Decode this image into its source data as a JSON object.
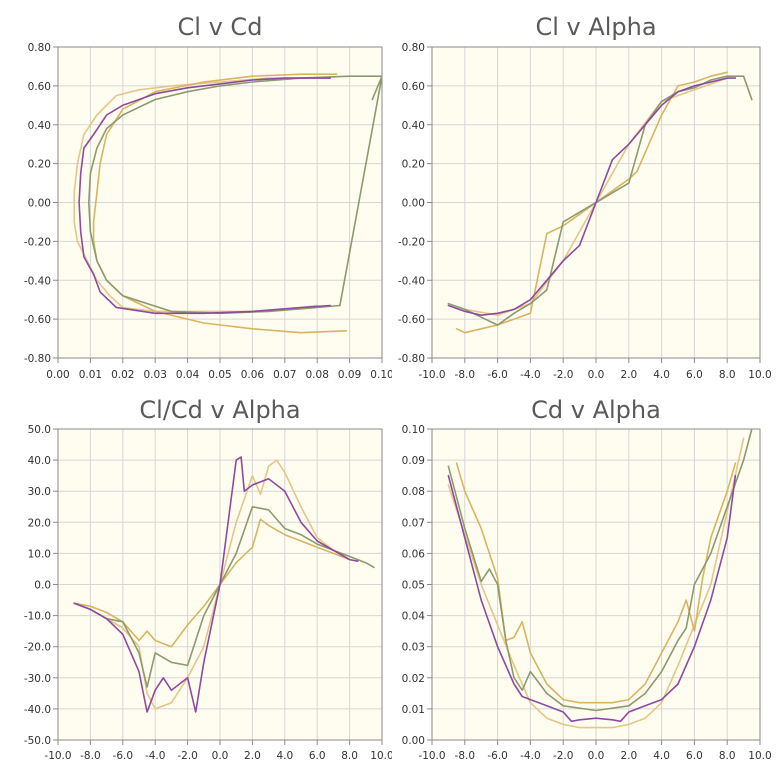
{
  "colors": {
    "series": [
      "#8e4a9e",
      "#8c9a6e",
      "#d9b45f",
      "#e3c688"
    ]
  },
  "chart_data": [
    {
      "type": "line",
      "title": "Cl v Cd",
      "xlim": [
        0.0,
        0.1
      ],
      "ylim": [
        -0.8,
        0.8
      ],
      "xticks": [
        "0.00",
        "0.01",
        "0.02",
        "0.03",
        "0.04",
        "0.05",
        "0.06",
        "0.07",
        "0.08",
        "0.09",
        "0.10"
      ],
      "yticks": [
        "-0.80",
        "-0.60",
        "-0.40",
        "-0.20",
        "0.00",
        "0.20",
        "0.40",
        "0.60",
        "0.80"
      ],
      "series": [
        {
          "x": [
            0.084,
            0.07,
            0.06,
            0.05,
            0.04,
            0.03,
            0.02,
            0.015,
            0.011,
            0.008,
            0.007,
            0.0065,
            0.007,
            0.008,
            0.011,
            0.013,
            0.018,
            0.03,
            0.045,
            0.06,
            0.075,
            0.084
          ],
          "y": [
            0.64,
            0.64,
            0.63,
            0.61,
            0.59,
            0.56,
            0.5,
            0.45,
            0.35,
            0.28,
            0.15,
            0.0,
            -0.15,
            -0.28,
            -0.37,
            -0.46,
            -0.54,
            -0.57,
            -0.57,
            -0.56,
            -0.54,
            -0.53
          ]
        },
        {
          "x": [
            0.1,
            0.09,
            0.075,
            0.06,
            0.05,
            0.04,
            0.03,
            0.02,
            0.015,
            0.012,
            0.01,
            0.0095,
            0.01,
            0.012,
            0.015,
            0.02,
            0.035,
            0.05,
            0.065,
            0.08,
            0.087,
            0.1,
            0.097
          ],
          "y": [
            0.65,
            0.65,
            0.64,
            0.62,
            0.6,
            0.57,
            0.53,
            0.45,
            0.38,
            0.28,
            0.15,
            0.0,
            -0.15,
            -0.3,
            -0.4,
            -0.48,
            -0.56,
            -0.57,
            -0.56,
            -0.54,
            -0.53,
            0.65,
            0.53
          ]
        },
        {
          "x": [
            0.086,
            0.075,
            0.06,
            0.045,
            0.03,
            0.02,
            0.015,
            0.013,
            0.012,
            0.011,
            0.011,
            0.012,
            0.015,
            0.02,
            0.03,
            0.045,
            0.06,
            0.075,
            0.089
          ],
          "y": [
            0.66,
            0.66,
            0.65,
            0.62,
            0.57,
            0.48,
            0.35,
            0.2,
            0.05,
            -0.1,
            -0.2,
            -0.3,
            -0.4,
            -0.48,
            -0.56,
            -0.62,
            -0.65,
            -0.67,
            -0.66
          ]
        },
        {
          "x": [
            0.08,
            0.065,
            0.05,
            0.035,
            0.025,
            0.018,
            0.012,
            0.008,
            0.006,
            0.005,
            0.005,
            0.006,
            0.009,
            0.012,
            0.016,
            0.02,
            0.03,
            0.045,
            0.06,
            0.075,
            0.08
          ],
          "y": [
            0.64,
            0.64,
            0.62,
            0.6,
            0.58,
            0.55,
            0.45,
            0.35,
            0.2,
            0.05,
            -0.1,
            -0.2,
            -0.3,
            -0.4,
            -0.48,
            -0.54,
            -0.56,
            -0.56,
            -0.56,
            -0.54,
            -0.53
          ]
        }
      ]
    },
    {
      "type": "line",
      "title": "Cl v Alpha",
      "xlim": [
        -10.0,
        10.0
      ],
      "ylim": [
        -0.8,
        0.8
      ],
      "xticks": [
        "-10.0",
        "-8.0",
        "-6.0",
        "-4.0",
        "-2.0",
        "0.0",
        "2.0",
        "4.0",
        "6.0",
        "8.0",
        "10.0"
      ],
      "yticks": [
        "-0.80",
        "-0.60",
        "-0.40",
        "-0.20",
        "0.00",
        "0.20",
        "0.40",
        "0.60",
        "0.80"
      ],
      "series": [
        {
          "x": [
            -9.0,
            -8.0,
            -7.0,
            -6.0,
            -5.0,
            -4.0,
            -3.0,
            -2.0,
            -1.0,
            0.0,
            1.0,
            2.0,
            3.0,
            4.0,
            5.0,
            6.0,
            7.0,
            8.0,
            8.5
          ],
          "y": [
            -0.53,
            -0.56,
            -0.58,
            -0.57,
            -0.55,
            -0.5,
            -0.4,
            -0.3,
            -0.22,
            0.0,
            0.22,
            0.3,
            0.4,
            0.5,
            0.57,
            0.6,
            0.62,
            0.64,
            0.64
          ]
        },
        {
          "x": [
            -9.0,
            -8.0,
            -7.0,
            -6.0,
            -5.0,
            -4.0,
            -3.0,
            -2.0,
            -1.0,
            0.0,
            1.0,
            2.0,
            3.0,
            4.0,
            5.0,
            6.0,
            7.0,
            8.0,
            9.0,
            9.5
          ],
          "y": [
            -0.52,
            -0.55,
            -0.59,
            -0.63,
            -0.57,
            -0.52,
            -0.45,
            -0.1,
            -0.05,
            0.0,
            0.05,
            0.1,
            0.4,
            0.52,
            0.57,
            0.59,
            0.63,
            0.65,
            0.65,
            0.53
          ]
        },
        {
          "x": [
            -8.5,
            -8.0,
            -7.0,
            -6.0,
            -5.0,
            -4.0,
            -3.0,
            -2.0,
            -1.0,
            0.0,
            1.0,
            2.0,
            2.5,
            4.0,
            5.0,
            6.0,
            7.0,
            8.0
          ],
          "y": [
            -0.65,
            -0.67,
            -0.65,
            -0.63,
            -0.6,
            -0.57,
            -0.16,
            -0.12,
            -0.06,
            0.0,
            0.06,
            0.12,
            0.16,
            0.45,
            0.6,
            0.62,
            0.65,
            0.67
          ]
        },
        {
          "x": [
            -8.0,
            -6.0,
            -4.0,
            -2.0,
            0.0,
            2.0,
            4.0,
            6.0,
            8.0
          ],
          "y": [
            -0.55,
            -0.58,
            -0.52,
            -0.3,
            0.0,
            0.3,
            0.52,
            0.58,
            0.64
          ]
        }
      ]
    },
    {
      "type": "line",
      "title": "Cl/Cd v Alpha",
      "xlim": [
        -10.0,
        10.0
      ],
      "ylim": [
        -50.0,
        50.0
      ],
      "xticks": [
        "-10.0",
        "-8.0",
        "-6.0",
        "-4.0",
        "-2.0",
        "0.0",
        "2.0",
        "4.0",
        "6.0",
        "8.0",
        "10.0"
      ],
      "yticks": [
        "-50.0",
        "-40.0",
        "-30.0",
        "-20.0",
        "-10.0",
        "0.0",
        "10.0",
        "20.0",
        "30.0",
        "40.0",
        "50.0"
      ],
      "series": [
        {
          "x": [
            -9.0,
            -8.0,
            -7.0,
            -6.0,
            -5.0,
            -4.5,
            -4.0,
            -3.5,
            -3.0,
            -2.5,
            -2.0,
            -1.5,
            -1.0,
            0.0,
            1.0,
            1.3,
            1.5,
            2.0,
            3.0,
            4.0,
            5.0,
            6.0,
            7.0,
            8.0,
            8.5
          ],
          "y": [
            -6.0,
            -8.0,
            -11.0,
            -16.0,
            -28.0,
            -41.0,
            -34.0,
            -30.0,
            -34.0,
            -32.0,
            -30.0,
            -41.0,
            -25.0,
            0.0,
            40.0,
            41.0,
            30.0,
            32.0,
            34.0,
            30.0,
            20.0,
            14.0,
            11.0,
            8.0,
            7.5
          ]
        },
        {
          "x": [
            -9.0,
            -8.0,
            -7.0,
            -6.0,
            -5.0,
            -4.5,
            -4.0,
            -3.0,
            -2.0,
            -1.0,
            0.0,
            1.0,
            2.0,
            3.0,
            4.0,
            5.0,
            6.0,
            7.0,
            8.0,
            9.0,
            9.5
          ],
          "y": [
            -6.0,
            -8.0,
            -11.0,
            -12.0,
            -22.0,
            -33.0,
            -22.0,
            -25.0,
            -26.0,
            -10.0,
            0.0,
            10.0,
            25.0,
            24.0,
            18.0,
            16.0,
            13.0,
            11.0,
            9.0,
            7.0,
            5.5
          ]
        },
        {
          "x": [
            -9.0,
            -8.0,
            -7.0,
            -6.0,
            -5.0,
            -4.5,
            -4.0,
            -3.0,
            -2.0,
            -1.0,
            0.0,
            1.0,
            2.0,
            2.5,
            3.0,
            4.0,
            5.0,
            6.0,
            7.0,
            8.0
          ],
          "y": [
            -6.0,
            -7.0,
            -9.0,
            -12.0,
            -18.0,
            -15.0,
            -18.0,
            -20.0,
            -13.0,
            -7.0,
            0.0,
            7.0,
            12.0,
            21.0,
            19.0,
            16.0,
            14.0,
            12.0,
            10.0,
            8.0
          ]
        },
        {
          "x": [
            -8.0,
            -6.0,
            -5.0,
            -4.5,
            -4.0,
            -3.0,
            -2.0,
            -1.0,
            0.0,
            1.0,
            2.0,
            2.5,
            3.0,
            3.5,
            4.0,
            5.0,
            6.0,
            7.0,
            8.0
          ],
          "y": [
            -8.0,
            -14.0,
            -20.0,
            -35.0,
            -40.0,
            -38.0,
            -30.0,
            -20.0,
            0.0,
            20.0,
            35.0,
            29.0,
            38.0,
            40.0,
            36.0,
            25.0,
            15.0,
            11.0,
            8.0
          ]
        }
      ]
    },
    {
      "type": "line",
      "title": "Cd v Alpha",
      "xlim": [
        -10.0,
        10.0
      ],
      "ylim": [
        0.0,
        0.1
      ],
      "xticks": [
        "-10.0",
        "-8.0",
        "-6.0",
        "-4.0",
        "-2.0",
        "0.0",
        "2.0",
        "4.0",
        "6.0",
        "8.0",
        "10.0"
      ],
      "yticks": [
        "0.00",
        "0.01",
        "0.02",
        "0.03",
        "0.04",
        "0.05",
        "0.06",
        "0.07",
        "0.08",
        "0.09",
        "0.10"
      ],
      "series": [
        {
          "x": [
            -9.0,
            -8.0,
            -7.0,
            -6.0,
            -5.0,
            -4.5,
            -4.0,
            -3.0,
            -2.0,
            -1.5,
            -1.0,
            0.0,
            1.0,
            1.5,
            2.0,
            3.0,
            4.0,
            5.0,
            6.0,
            7.0,
            8.0,
            8.5
          ],
          "y": [
            0.085,
            0.065,
            0.045,
            0.03,
            0.018,
            0.014,
            0.013,
            0.011,
            0.009,
            0.006,
            0.0065,
            0.007,
            0.0065,
            0.006,
            0.009,
            0.011,
            0.013,
            0.018,
            0.03,
            0.045,
            0.065,
            0.085
          ]
        },
        {
          "x": [
            -9.0,
            -8.0,
            -7.0,
            -6.5,
            -6.0,
            -5.5,
            -5.0,
            -4.5,
            -4.0,
            -3.0,
            -2.0,
            0.0,
            2.0,
            3.0,
            4.0,
            5.0,
            5.5,
            6.0,
            6.5,
            7.0,
            8.0,
            9.0,
            9.5
          ],
          "y": [
            0.088,
            0.068,
            0.051,
            0.055,
            0.05,
            0.032,
            0.02,
            0.016,
            0.022,
            0.015,
            0.011,
            0.0095,
            0.011,
            0.015,
            0.022,
            0.032,
            0.036,
            0.05,
            0.055,
            0.06,
            0.075,
            0.09,
            0.1
          ]
        },
        {
          "x": [
            -8.5,
            -8.0,
            -7.0,
            -6.0,
            -5.5,
            -5.0,
            -4.5,
            -4.0,
            -3.0,
            -2.0,
            -1.0,
            0.0,
            1.0,
            2.0,
            3.0,
            4.0,
            5.0,
            5.5,
            6.0,
            6.5,
            7.0,
            8.0,
            8.5
          ],
          "y": [
            0.089,
            0.08,
            0.068,
            0.052,
            0.032,
            0.033,
            0.038,
            0.028,
            0.018,
            0.013,
            0.012,
            0.012,
            0.012,
            0.013,
            0.018,
            0.028,
            0.038,
            0.045,
            0.035,
            0.052,
            0.065,
            0.08,
            0.089
          ]
        },
        {
          "x": [
            -9.0,
            -7.0,
            -5.0,
            -4.0,
            -3.0,
            -2.0,
            -1.0,
            0.0,
            1.0,
            2.0,
            3.0,
            4.0,
            5.0,
            7.0,
            9.0
          ],
          "y": [
            0.082,
            0.05,
            0.024,
            0.012,
            0.007,
            0.005,
            0.004,
            0.004,
            0.004,
            0.005,
            0.007,
            0.012,
            0.024,
            0.05,
            0.097
          ]
        }
      ]
    }
  ]
}
